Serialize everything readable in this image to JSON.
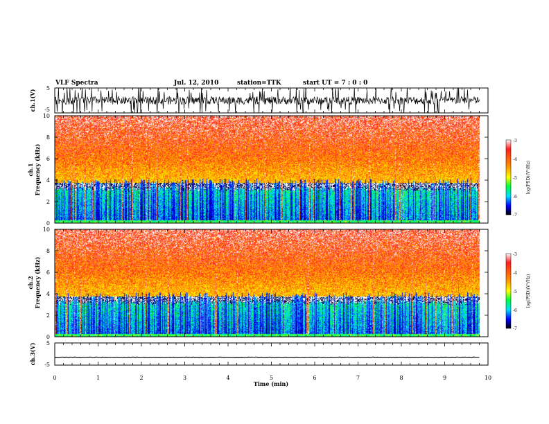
{
  "header": {
    "title": "VLF Spectra",
    "date": "Jul. 12, 2010",
    "station": "station=TTK",
    "start": "start UT = 7 : 0 : 0"
  },
  "chart_data": [
    {
      "type": "line",
      "name": "ch1-waveform",
      "ylabel": "ch.1(V)",
      "yticks": [
        "5",
        "-5"
      ],
      "ylim": [
        -5,
        5
      ],
      "xlim": [
        0,
        10
      ],
      "data_end_min": 9.8,
      "description_values": "noisy waveform mostly between -2 and 2 V with frequent spikes to about +/-5 V"
    },
    {
      "type": "heatmap",
      "name": "ch1-spectrogram",
      "ylabel_top": "ch.1",
      "ylabel": "Frequency (kHz)",
      "yticks": [
        "0",
        "2",
        "4",
        "6",
        "8",
        "10"
      ],
      "ylim": [
        0,
        10
      ],
      "xlim": [
        0,
        10
      ],
      "colorbar": {
        "label": "log(PSD)(V²/Hz)",
        "range": [
          -7,
          -3
        ],
        "ticks": [
          "-3",
          "-4",
          "-5",
          "-6",
          "-7"
        ]
      }
    },
    {
      "type": "heatmap",
      "name": "ch2-spectrogram",
      "ylabel_top": "ch.2",
      "ylabel": "Frequency (kHz)",
      "yticks": [
        "0",
        "2",
        "4",
        "6",
        "8",
        "10"
      ],
      "ylim": [
        0,
        10
      ],
      "xlim": [
        0,
        10
      ],
      "colorbar": {
        "label": "log(PSD)(V²/Hz)",
        "range": [
          -7,
          -3
        ],
        "ticks": [
          "-3",
          "-4",
          "-5",
          "-6",
          "-7"
        ]
      }
    },
    {
      "type": "line",
      "name": "ch3-waveform",
      "ylabel": "ch.3(V)",
      "yticks": [
        "5",
        "-5"
      ],
      "ylim": [
        -5,
        5
      ],
      "xlim": [
        0,
        10
      ],
      "values_approx": -1.5
    }
  ],
  "xaxis": {
    "label": "Time (min)",
    "ticks": [
      "0",
      "1",
      "2",
      "3",
      "4",
      "5",
      "6",
      "7",
      "8",
      "9",
      "10"
    ]
  },
  "colors": {
    "spectro_low": "#000080",
    "spectro_high": "#ff2000",
    "colorbar": [
      "#7f0000",
      "#ff0000",
      "#ff8000",
      "#ffff00",
      "#00ff00",
      "#00ffff",
      "#0000ff",
      "#000080"
    ]
  }
}
